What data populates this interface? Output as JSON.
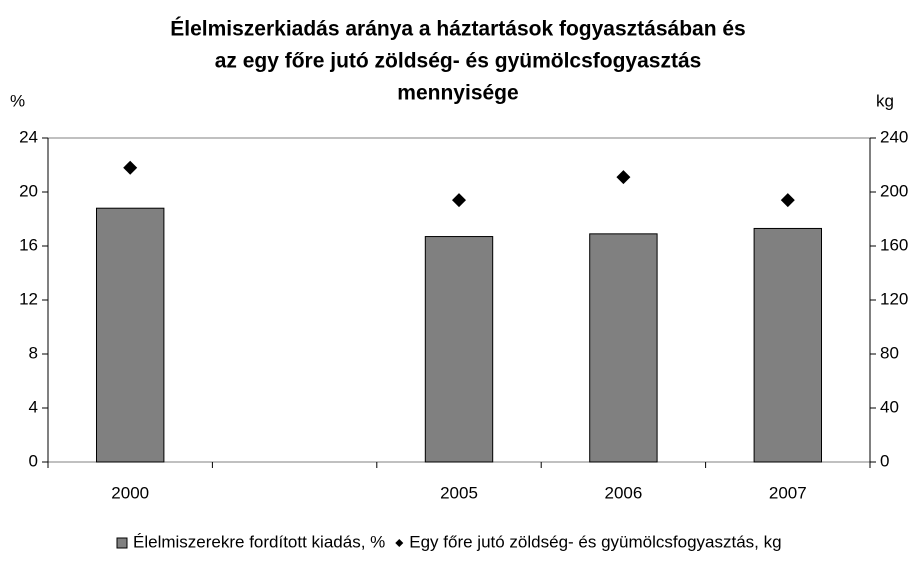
{
  "chart_data": {
    "type": "bar",
    "title": [
      "Élelmiszerkiadás aránya a háztartások fogyasztásában és",
      "az egy főre jutó zöldség- és gyümölcsfogyasztás",
      "mennyisége"
    ],
    "ylabel": "%",
    "y2label": "kg",
    "categories": [
      "2000",
      null,
      "2005",
      "2006",
      "2007"
    ],
    "series": [
      {
        "name": "Élelmiszerekre fordított kiadás, %",
        "type": "bar",
        "color": "#808080",
        "values": [
          18.8,
          null,
          16.7,
          16.9,
          17.3
        ]
      },
      {
        "name": "Egy főre jutó zöldség- és gyümölcsfogyasztás, kg",
        "type": "scatter",
        "marker": "diamond",
        "axis": "y2",
        "color": "#000000",
        "values": [
          218,
          null,
          194,
          211,
          194
        ]
      }
    ],
    "ylim": [
      0,
      24
    ],
    "yticks": [
      0,
      4,
      8,
      12,
      16,
      20,
      24
    ],
    "y2lim": [
      0,
      240
    ],
    "y2ticks": [
      0,
      40,
      80,
      120,
      160,
      200,
      240
    ],
    "grid": false,
    "legend": "bottom"
  }
}
